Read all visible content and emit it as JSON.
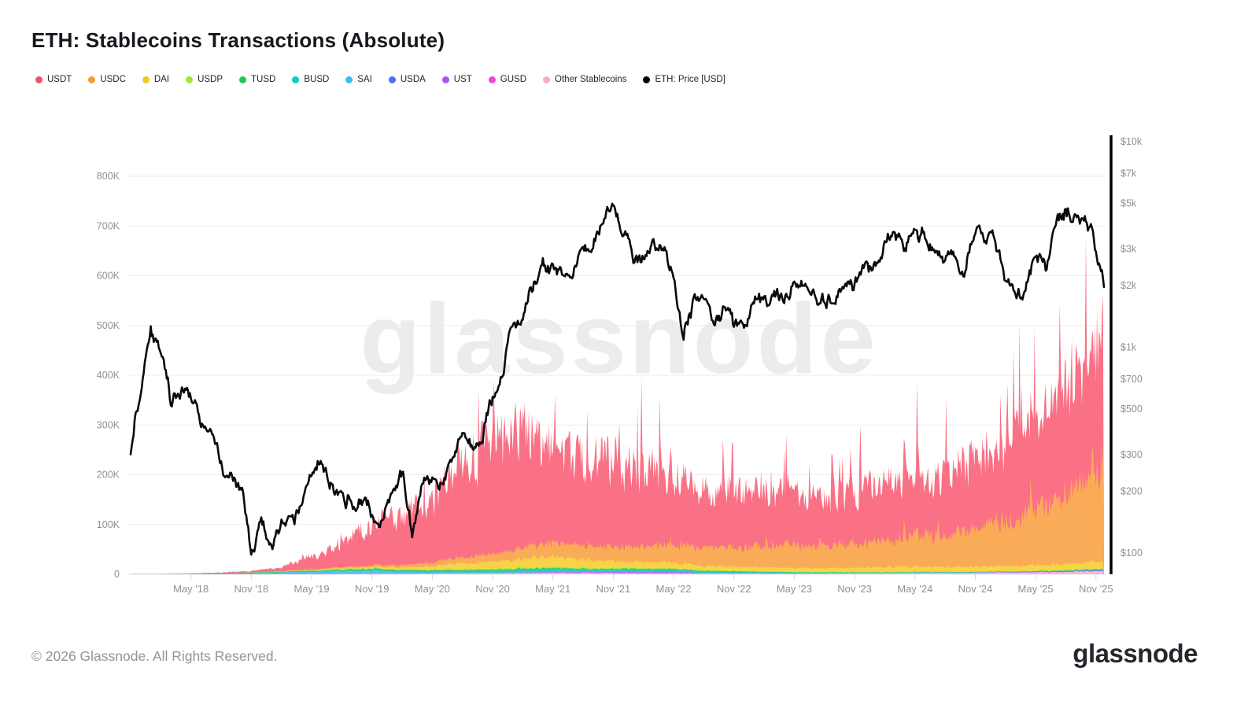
{
  "header": {
    "title": "ETH: Stablecoins Transactions (Absolute)"
  },
  "watermark": {
    "text": "glassnode"
  },
  "footer": {
    "copyright": "© 2026 Glassnode. All Rights Reserved.",
    "brand": "glassnode"
  },
  "legend": [
    {
      "label": "USDT",
      "color": "#f4506a"
    },
    {
      "label": "USDC",
      "color": "#f79a38"
    },
    {
      "label": "DAI",
      "color": "#f2c821"
    },
    {
      "label": "USDP",
      "color": "#a3e635"
    },
    {
      "label": "TUSD",
      "color": "#22c55e"
    },
    {
      "label": "BUSD",
      "color": "#14c9bf"
    },
    {
      "label": "SAI",
      "color": "#38bdf8"
    },
    {
      "label": "USDA",
      "color": "#4f6ef7"
    },
    {
      "label": "UST",
      "color": "#a855f7"
    },
    {
      "label": "GUSD",
      "color": "#ec48e0"
    },
    {
      "label": "Other Stablecoins",
      "color": "#f9a8d4"
    },
    {
      "label": "ETH: Price [USD]",
      "color": "#000000"
    }
  ],
  "chart_data": {
    "type": "area",
    "stacked": true,
    "title": "ETH: Stablecoins Transactions (Absolute)",
    "grid": true,
    "legend_position": "top",
    "x_start": "Nov 2017",
    "x_end": "Dec 2025",
    "x_tick_labels": [
      "May '18",
      "Nov '18",
      "May '19",
      "Nov '19",
      "May '20",
      "Nov '20",
      "May '21",
      "Nov '21",
      "May '22",
      "Nov '22",
      "May '23",
      "Nov '23",
      "May '24",
      "Nov '24",
      "May '25",
      "Nov '25"
    ],
    "x_tick_month_index": [
      6,
      12,
      18,
      24,
      30,
      36,
      42,
      48,
      54,
      60,
      66,
      72,
      78,
      84,
      90,
      96
    ],
    "left_axis": {
      "unit": "transactions",
      "tick_labels": [
        "0",
        "100K",
        "200K",
        "300K",
        "400K",
        "500K",
        "600K",
        "700K",
        "800K"
      ],
      "tick_values_k": [
        0,
        100,
        200,
        300,
        400,
        500,
        600,
        700,
        800
      ],
      "ylim_k": [
        0,
        850
      ]
    },
    "right_axis": {
      "unit": "ETH price USD",
      "scale": "log",
      "tick_labels": [
        "$10k",
        "$7k",
        "$5k",
        "$3k",
        "$2k",
        "$1k",
        "$700",
        "$500",
        "$300",
        "$200",
        "$100"
      ],
      "tick_values": [
        10000,
        7000,
        5000,
        3000,
        2000,
        1000,
        700,
        500,
        300,
        200,
        100
      ]
    },
    "anchor_months": [
      0,
      3,
      6,
      9,
      12,
      15,
      18,
      21,
      24,
      27,
      30,
      33,
      36,
      39,
      42,
      45,
      48,
      51,
      54,
      57,
      60,
      63,
      66,
      69,
      72,
      75,
      78,
      81,
      84,
      87,
      90,
      93,
      96,
      96.8
    ],
    "series": [
      {
        "name": "USDT",
        "color": "#fa7186",
        "values_k": [
          0,
          0.2,
          0.5,
          1.5,
          3,
          8,
          25,
          50,
          85,
          95,
          130,
          180,
          220,
          225,
          185,
          165,
          175,
          150,
          140,
          115,
          112,
          100,
          102,
          95,
          102,
          118,
          128,
          120,
          145,
          160,
          185,
          215,
          245,
          280
        ]
      },
      {
        "name": "USDC",
        "color": "#faab57",
        "values_k": [
          0,
          0,
          0,
          0,
          0,
          0.5,
          1,
          2,
          3,
          5,
          8,
          12,
          15,
          22,
          30,
          28,
          30,
          32,
          38,
          35,
          38,
          40,
          45,
          42,
          48,
          55,
          65,
          60,
          75,
          90,
          110,
          140,
          185,
          215
        ]
      },
      {
        "name": "DAI",
        "color": "#f8d347",
        "values_k": [
          0,
          0,
          0,
          0,
          0,
          0.3,
          1,
          2,
          3,
          4,
          6,
          12,
          14,
          18,
          22,
          15,
          14,
          12,
          12,
          9,
          9,
          8,
          8,
          7,
          8,
          9,
          10,
          9,
          10,
          10,
          11,
          12,
          13,
          14
        ]
      },
      {
        "name": "USDP",
        "color": "#b5e84a",
        "values_k": [
          0,
          0,
          0,
          0,
          0.2,
          0.3,
          0.5,
          0.8,
          1,
          1,
          1.5,
          2,
          2,
          2,
          2,
          1.5,
          1.5,
          1.2,
          1,
          1,
          1,
          0.8,
          0.8,
          0.8,
          0.8,
          0.8,
          0.8,
          0.8,
          0.8,
          0.8,
          1,
          1,
          1,
          1
        ]
      },
      {
        "name": "TUSD",
        "color": "#2fd07a",
        "values_k": [
          0,
          0,
          0.2,
          0.5,
          1,
          1.5,
          2,
          2.5,
          3,
          3,
          3,
          3,
          3,
          3,
          2.5,
          2,
          2,
          2,
          2,
          1.5,
          1.5,
          1.2,
          1,
          1,
          1,
          1,
          1,
          1,
          1,
          1,
          1,
          1.2,
          1.5,
          1.5
        ]
      },
      {
        "name": "BUSD",
        "color": "#25cfc2",
        "values_k": [
          0,
          0,
          0,
          0,
          0,
          0,
          0.3,
          0.5,
          1,
          1,
          1.5,
          2,
          3,
          4,
          5,
          4,
          4,
          4,
          3.5,
          3,
          2.5,
          2,
          1.5,
          1,
          0.8,
          0.5,
          0.5,
          0.4,
          0.3,
          0.3,
          0.3,
          0.3,
          0.3,
          0.3
        ]
      },
      {
        "name": "SAI",
        "color": "#55c1f6",
        "values_k": [
          0.2,
          0.5,
          1,
          1.5,
          2,
          3,
          4,
          5,
          6,
          3,
          1.5,
          1,
          0.8,
          0.5,
          0.4,
          0.3,
          0.3,
          0.2,
          0.2,
          0.2,
          0.2,
          0.1,
          0.1,
          0.1,
          0.1,
          0.1,
          0.1,
          0.1,
          0.1,
          0.1,
          0.1,
          0.1,
          0.1,
          0.1
        ]
      },
      {
        "name": "USDA",
        "color": "#5b7af8",
        "values_k": [
          0,
          0,
          0,
          0,
          0,
          0,
          0,
          0,
          0,
          0,
          0,
          0,
          0,
          0,
          0,
          0,
          0,
          0,
          0,
          0,
          0,
          0,
          0,
          0,
          0,
          0.1,
          0.2,
          0.2,
          0.3,
          0.5,
          0.8,
          1,
          1.5,
          1.5
        ]
      },
      {
        "name": "UST",
        "color": "#b06af8",
        "values_k": [
          0,
          0,
          0,
          0,
          0,
          0,
          0,
          0,
          0,
          0,
          0,
          0,
          0.2,
          0.5,
          1,
          1.5,
          2,
          2.5,
          3,
          0.2,
          0.1,
          0.1,
          0.1,
          0,
          0,
          0,
          0,
          0,
          0,
          0,
          0,
          0,
          0,
          0
        ]
      },
      {
        "name": "GUSD",
        "color": "#ef6ae6",
        "values_k": [
          0,
          0,
          0,
          0.2,
          0.3,
          0.5,
          0.5,
          0.5,
          0.5,
          0.5,
          0.5,
          0.5,
          0.5,
          0.5,
          0.5,
          0.5,
          0.4,
          0.3,
          0.3,
          0.2,
          0.2,
          0.2,
          0.2,
          0.2,
          0.2,
          0.2,
          0.2,
          0.2,
          0.2,
          0.2,
          0.2,
          0.2,
          0.2,
          0.2
        ]
      },
      {
        "name": "Other Stablecoins",
        "color": "#fbb5e3",
        "values_k": [
          0,
          0,
          0,
          0,
          0.2,
          0.3,
          0.5,
          0.8,
          1,
          1,
          1.5,
          2,
          2,
          2.5,
          3,
          2.5,
          2.5,
          2,
          2,
          1.5,
          1.5,
          1.5,
          1.5,
          1.5,
          2,
          2,
          2.5,
          2.5,
          3,
          3.5,
          4,
          5,
          6,
          7
        ]
      }
    ],
    "eth_price": {
      "name": "ETH: Price [USD]",
      "color": "#000000",
      "monthly_values_usd": [
        320,
        650,
        1300,
        880,
        540,
        640,
        580,
        460,
        440,
        285,
        220,
        205,
        105,
        135,
        100,
        135,
        138,
        165,
        255,
        300,
        215,
        172,
        180,
        181,
        150,
        130,
        180,
        255,
        112,
        208,
        230,
        228,
        318,
        400,
        355,
        385,
        590,
        735,
        1310,
        1420,
        1840,
        2770,
        2390,
        2160,
        2290,
        3230,
        2970,
        4170,
        4630,
        3690,
        2690,
        2920,
        3280,
        2820,
        1940,
        1070,
        1680,
        1550,
        1330,
        1570,
        1215,
        1195,
        1580,
        1640,
        1790,
        1870,
        1860,
        1930,
        1860,
        1650,
        1665,
        1800,
        2050,
        2280,
        2290,
        2980,
        3600,
        3010,
        3750,
        3400,
        3250,
        2520,
        2640,
        2510,
        3590,
        3420,
        3180,
        2230,
        1870,
        1790,
        2580,
        2460,
        3720,
        4550,
        4180,
        3880,
        3050,
        1750
      ]
    }
  }
}
